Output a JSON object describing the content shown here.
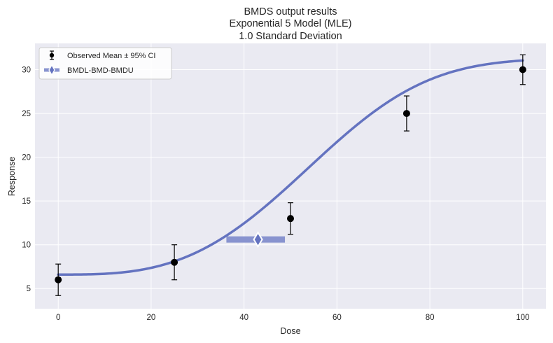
{
  "chart_data": {
    "type": "scatter",
    "title_lines": [
      "BMDS output results",
      "Exponential 5 Model (MLE)",
      "1.0 Standard Deviation"
    ],
    "xlabel": "Dose",
    "ylabel": "Response",
    "xlim": [
      -5,
      105
    ],
    "ylim": [
      2.7,
      33
    ],
    "xticks": [
      0,
      20,
      40,
      60,
      80,
      100
    ],
    "yticks": [
      5,
      10,
      15,
      20,
      25,
      30
    ],
    "grid": true,
    "legend_placement": "top-left",
    "legend": {
      "observed_label": "Observed Mean ± 95% CI",
      "bmd_label": "BMDL-BMD-BMDU"
    },
    "observed": [
      {
        "x": 0,
        "mean": 6.0,
        "lower": 4.2,
        "upper": 7.8
      },
      {
        "x": 25,
        "mean": 8.0,
        "lower": 6.0,
        "upper": 10.0
      },
      {
        "x": 50,
        "mean": 13.0,
        "lower": 11.2,
        "upper": 14.8
      },
      {
        "x": 75,
        "mean": 25.0,
        "lower": 23.0,
        "upper": 27.0
      },
      {
        "x": 100,
        "mean": 30.0,
        "lower": 28.3,
        "upper": 31.7
      }
    ],
    "fitted_model": {
      "a": 6.6,
      "c": 4.74,
      "b": 0.0164,
      "d": 3.1
    },
    "bmd_range": {
      "bmdl": 36.2,
      "bmd": 43.0,
      "bmdu": 48.8,
      "response": 10.6
    },
    "colors": {
      "background": "#eaeaf2",
      "curve": "#6473c0",
      "bmd_bar": "#8893cf",
      "points": "#000000"
    }
  }
}
